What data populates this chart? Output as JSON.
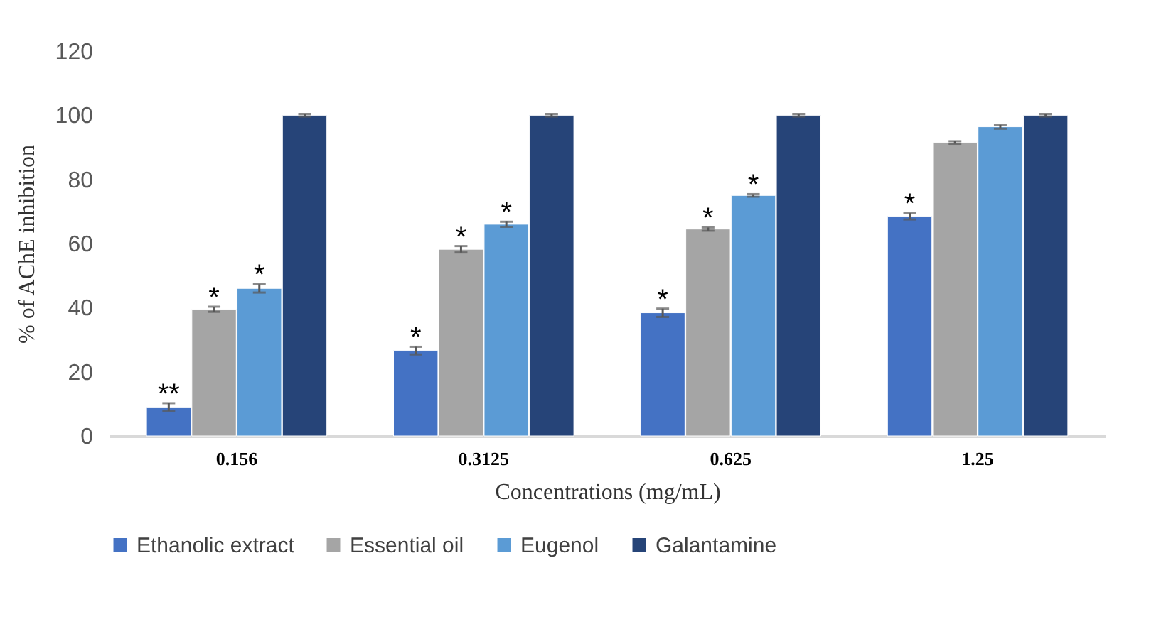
{
  "chart_data": {
    "type": "bar",
    "xlabel": "Concentrations (mg/mL)",
    "ylabel": "% of  AChE inhibition",
    "categories": [
      "0.156",
      "0.3125",
      "0.625",
      "1.25"
    ],
    "series": [
      {
        "name": "Ethanolic extract",
        "color": "#4472c4",
        "values": [
          9,
          26.6,
          38.4,
          68.5
        ],
        "errors": [
          1.2,
          1.2,
          1.3,
          1
        ],
        "value_labels": [
          "**",
          "*",
          "*",
          "*"
        ]
      },
      {
        "name": "Essential oil",
        "color": "#a5a5a5",
        "values": [
          39.5,
          58.2,
          64.5,
          91.5
        ],
        "errors": [
          0.8,
          1,
          0.5,
          0.4
        ],
        "value_labels": [
          "*",
          "*",
          "*",
          null
        ]
      },
      {
        "name": "Eugenol",
        "color": "#5b9bd5",
        "values": [
          46,
          66,
          75,
          96.4
        ],
        "errors": [
          1.3,
          0.8,
          0.4,
          0.6
        ],
        "value_labels": [
          "*",
          "*",
          "*",
          null
        ]
      },
      {
        "name": "Galantamine",
        "color": "#264478",
        "values": [
          100,
          100,
          100,
          100
        ],
        "errors": [
          0.4,
          0.4,
          0.4,
          0.4
        ]
      }
    ],
    "ylim": [
      0,
      120
    ],
    "yticks": [
      0,
      20,
      40,
      60,
      80,
      100,
      120
    ],
    "legend": "bottom"
  }
}
